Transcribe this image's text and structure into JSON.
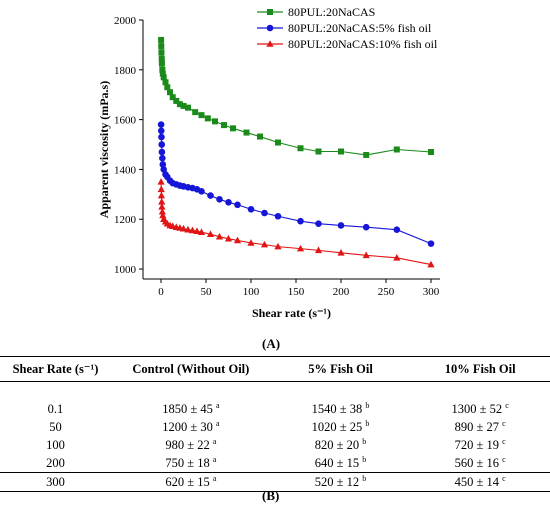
{
  "chart_data": {
    "type": "scatter",
    "title": "",
    "panel_label": "(A)",
    "xlabel": "Shear rate (s⁻¹)",
    "ylabel": "Apparent viscosity (mPa.s)",
    "xlim": [
      -20,
      310
    ],
    "ylim": [
      960,
      2000
    ],
    "x_ticks": [
      "0",
      "50",
      "100",
      "150",
      "200",
      "250",
      "300"
    ],
    "y_ticks": [
      "1000",
      "1200",
      "1400",
      "1600",
      "1800",
      "2000"
    ],
    "legend_position": "top-right",
    "series": [
      {
        "name": "80PUL:20NaCAS",
        "color": "#1a8a1a",
        "marker": "square",
        "x": [
          0.1,
          0.3,
          0.5,
          0.8,
          1,
          1.5,
          2,
          3,
          5,
          7,
          10,
          13,
          17,
          21,
          25,
          30,
          38,
          45,
          52,
          60,
          70,
          80,
          95,
          110,
          130,
          155,
          175,
          200,
          228,
          262,
          300
        ],
        "y": [
          1920,
          1895,
          1870,
          1845,
          1825,
          1800,
          1785,
          1770,
          1750,
          1730,
          1710,
          1690,
          1675,
          1662,
          1655,
          1648,
          1630,
          1618,
          1605,
          1593,
          1578,
          1565,
          1548,
          1532,
          1508,
          1485,
          1472,
          1472,
          1458,
          1480,
          1470
        ]
      },
      {
        "name": "80PUL:20NaCAS:5% fish oil",
        "color": "#1616d8",
        "marker": "circle",
        "x": [
          0.1,
          0.3,
          0.5,
          0.8,
          1,
          1.5,
          2,
          3,
          5,
          7,
          10,
          13,
          17,
          21,
          25,
          30,
          35,
          40,
          45,
          55,
          65,
          75,
          85,
          100,
          115,
          130,
          155,
          175,
          200,
          228,
          262,
          300
        ],
        "y": [
          1580,
          1555,
          1530,
          1500,
          1470,
          1445,
          1420,
          1400,
          1380,
          1370,
          1355,
          1345,
          1340,
          1335,
          1332,
          1328,
          1325,
          1320,
          1312,
          1295,
          1280,
          1268,
          1258,
          1240,
          1225,
          1212,
          1192,
          1182,
          1175,
          1168,
          1158,
          1102
        ]
      },
      {
        "name": "80PUL:20NaCAS:10% fish oil",
        "color": "#e01515",
        "marker": "triangle",
        "x": [
          0.1,
          0.3,
          0.5,
          0.8,
          1,
          1.5,
          2,
          3,
          5,
          7,
          10,
          13,
          17,
          21,
          25,
          30,
          35,
          40,
          45,
          55,
          65,
          75,
          85,
          100,
          115,
          130,
          155,
          175,
          200,
          228,
          262,
          300
        ],
        "y": [
          1350,
          1320,
          1295,
          1270,
          1250,
          1230,
          1215,
          1200,
          1190,
          1182,
          1175,
          1172,
          1168,
          1165,
          1162,
          1158,
          1155,
          1152,
          1148,
          1140,
          1130,
          1122,
          1115,
          1105,
          1098,
          1090,
          1082,
          1075,
          1065,
          1055,
          1045,
          1018
        ]
      }
    ]
  },
  "table": {
    "panel_label": "(B)",
    "headers": [
      "Shear Rate (s⁻¹)",
      "Control (Without Oil)",
      "5% Fish Oil",
      "10% Fish Oil"
    ],
    "rows": [
      {
        "rate": "0.1",
        "control": "1850 ± 45",
        "control_sup": "a",
        "fish5": "1540 ± 38",
        "fish5_sup": "b",
        "fish10": "1300 ± 52",
        "fish10_sup": "c"
      },
      {
        "rate": "50",
        "control": "1200 ± 30",
        "control_sup": "a",
        "fish5": "1020 ± 25",
        "fish5_sup": "b",
        "fish10": "890 ± 27",
        "fish10_sup": "c"
      },
      {
        "rate": "100",
        "control": "980 ± 22",
        "control_sup": "a",
        "fish5": "820 ± 20",
        "fish5_sup": "b",
        "fish10": "720 ± 19",
        "fish10_sup": "c"
      },
      {
        "rate": "200",
        "control": "750 ± 18",
        "control_sup": "a",
        "fish5": "640 ± 15",
        "fish5_sup": "b",
        "fish10": "560 ± 16",
        "fish10_sup": "c"
      },
      {
        "rate": "300",
        "control": "620 ± 15",
        "control_sup": "a",
        "fish5": "520 ± 12",
        "fish5_sup": "b",
        "fish10": "450 ± 14",
        "fish10_sup": "c"
      }
    ]
  }
}
